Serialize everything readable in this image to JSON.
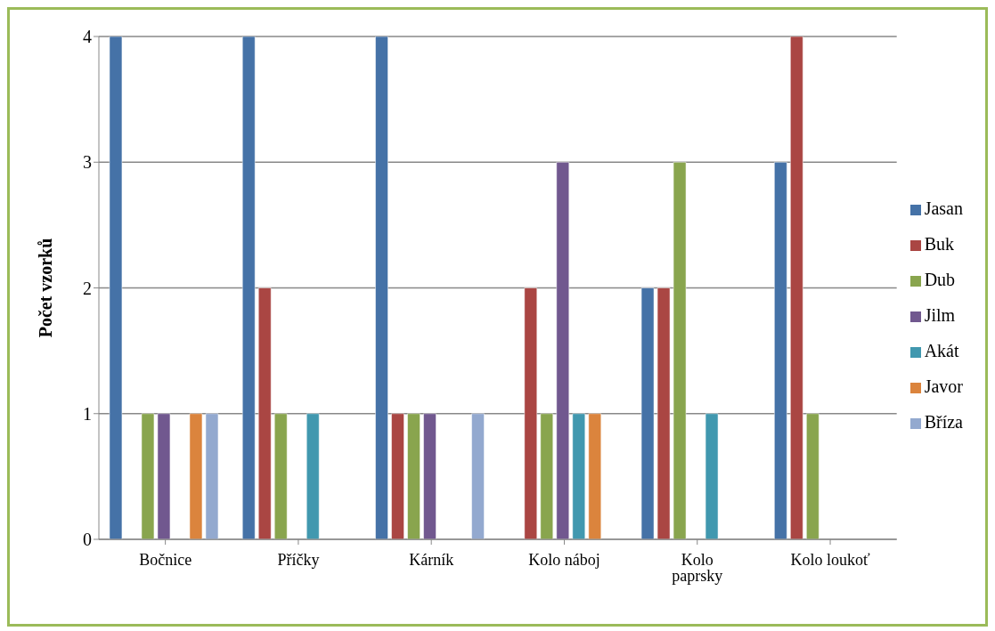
{
  "chart_data": {
    "type": "bar",
    "ylabel": "Počet vzorků",
    "categories": [
      "Bočnice",
      "Příčky",
      "Kárník",
      "Kolo náboj",
      "Kolo paprsky",
      "Kolo loukoť"
    ],
    "series": [
      {
        "name": "Jasan",
        "color": "#4572a7",
        "values": [
          4,
          4,
          4,
          0,
          2,
          3
        ]
      },
      {
        "name": "Buk",
        "color": "#aa4643",
        "values": [
          0,
          2,
          1,
          2,
          2,
          4
        ]
      },
      {
        "name": "Dub",
        "color": "#89a54e",
        "values": [
          1,
          1,
          1,
          1,
          3,
          1
        ]
      },
      {
        "name": "Jilm",
        "color": "#71588f",
        "values": [
          1,
          0,
          1,
          3,
          0,
          0
        ]
      },
      {
        "name": "Akát",
        "color": "#4198af",
        "values": [
          0,
          1,
          0,
          1,
          1,
          0
        ]
      },
      {
        "name": "Javor",
        "color": "#db843d",
        "values": [
          1,
          0,
          0,
          1,
          0,
          0
        ]
      },
      {
        "name": "Bříza",
        "color": "#93a9cf",
        "values": [
          1,
          0,
          1,
          0,
          0,
          0
        ]
      }
    ],
    "ylim": [
      0,
      4
    ],
    "yticks": [
      0,
      1,
      2,
      3,
      4
    ],
    "grid": "y",
    "legend": "right"
  }
}
